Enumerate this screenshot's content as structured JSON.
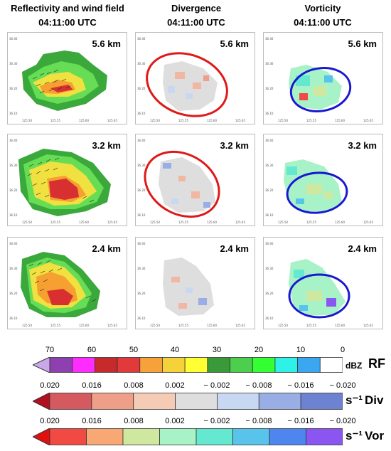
{
  "columns": [
    {
      "title": "Reflectivity and wind field",
      "time": "04:11:00 UTC"
    },
    {
      "title": "Divergence",
      "time": "04:11:00 UTC"
    },
    {
      "title": "Vorticity",
      "time": "04:11:00 UTC"
    }
  ],
  "heights": [
    "5.6 km",
    "3.2 km",
    "2.4 km"
  ],
  "colorbars": {
    "rf": {
      "ticks": [
        "70",
        "60",
        "50",
        "40",
        "30",
        "20",
        "10",
        "0"
      ],
      "unit": "dBZ",
      "name": "RF",
      "colors": [
        "#8e3fb0",
        "#ff2cff",
        "#c62a2a",
        "#e23a3a",
        "#f7a13a",
        "#f5d23a",
        "#ffff33",
        "#3a9a3a",
        "#4ccf4c",
        "#33ff33",
        "#2ef2e8",
        "#3aa7f0",
        "#ffffff"
      ]
    },
    "div": {
      "ticks": [
        "0.020",
        "0.016",
        "0.008",
        "0.002",
        "− 0.002",
        "− 0.008",
        "− 0.016",
        "− 0.020"
      ],
      "unit": "s⁻¹",
      "name": "Div",
      "colors": [
        "#d55a60",
        "#ef9e88",
        "#f6cbb6",
        "#dedede",
        "#c9d8f2",
        "#9aaee6",
        "#6e82d2"
      ]
    },
    "vor": {
      "ticks": [
        "0.020",
        "0.016",
        "0.008",
        "0.002",
        "− 0.002",
        "− 0.008",
        "− 0.016",
        "− 0.020"
      ],
      "unit": "s⁻¹",
      "name": "Vor",
      "colors": [
        "#f04a42",
        "#f7a873",
        "#cfe8a0",
        "#a8f2c8",
        "#64e8d0",
        "#58c4ec",
        "#4c86ee",
        "#8a55f0"
      ]
    }
  },
  "colors": {
    "div_ellipse": "#e01818",
    "vor_ellipse": "#1818d0"
  }
}
